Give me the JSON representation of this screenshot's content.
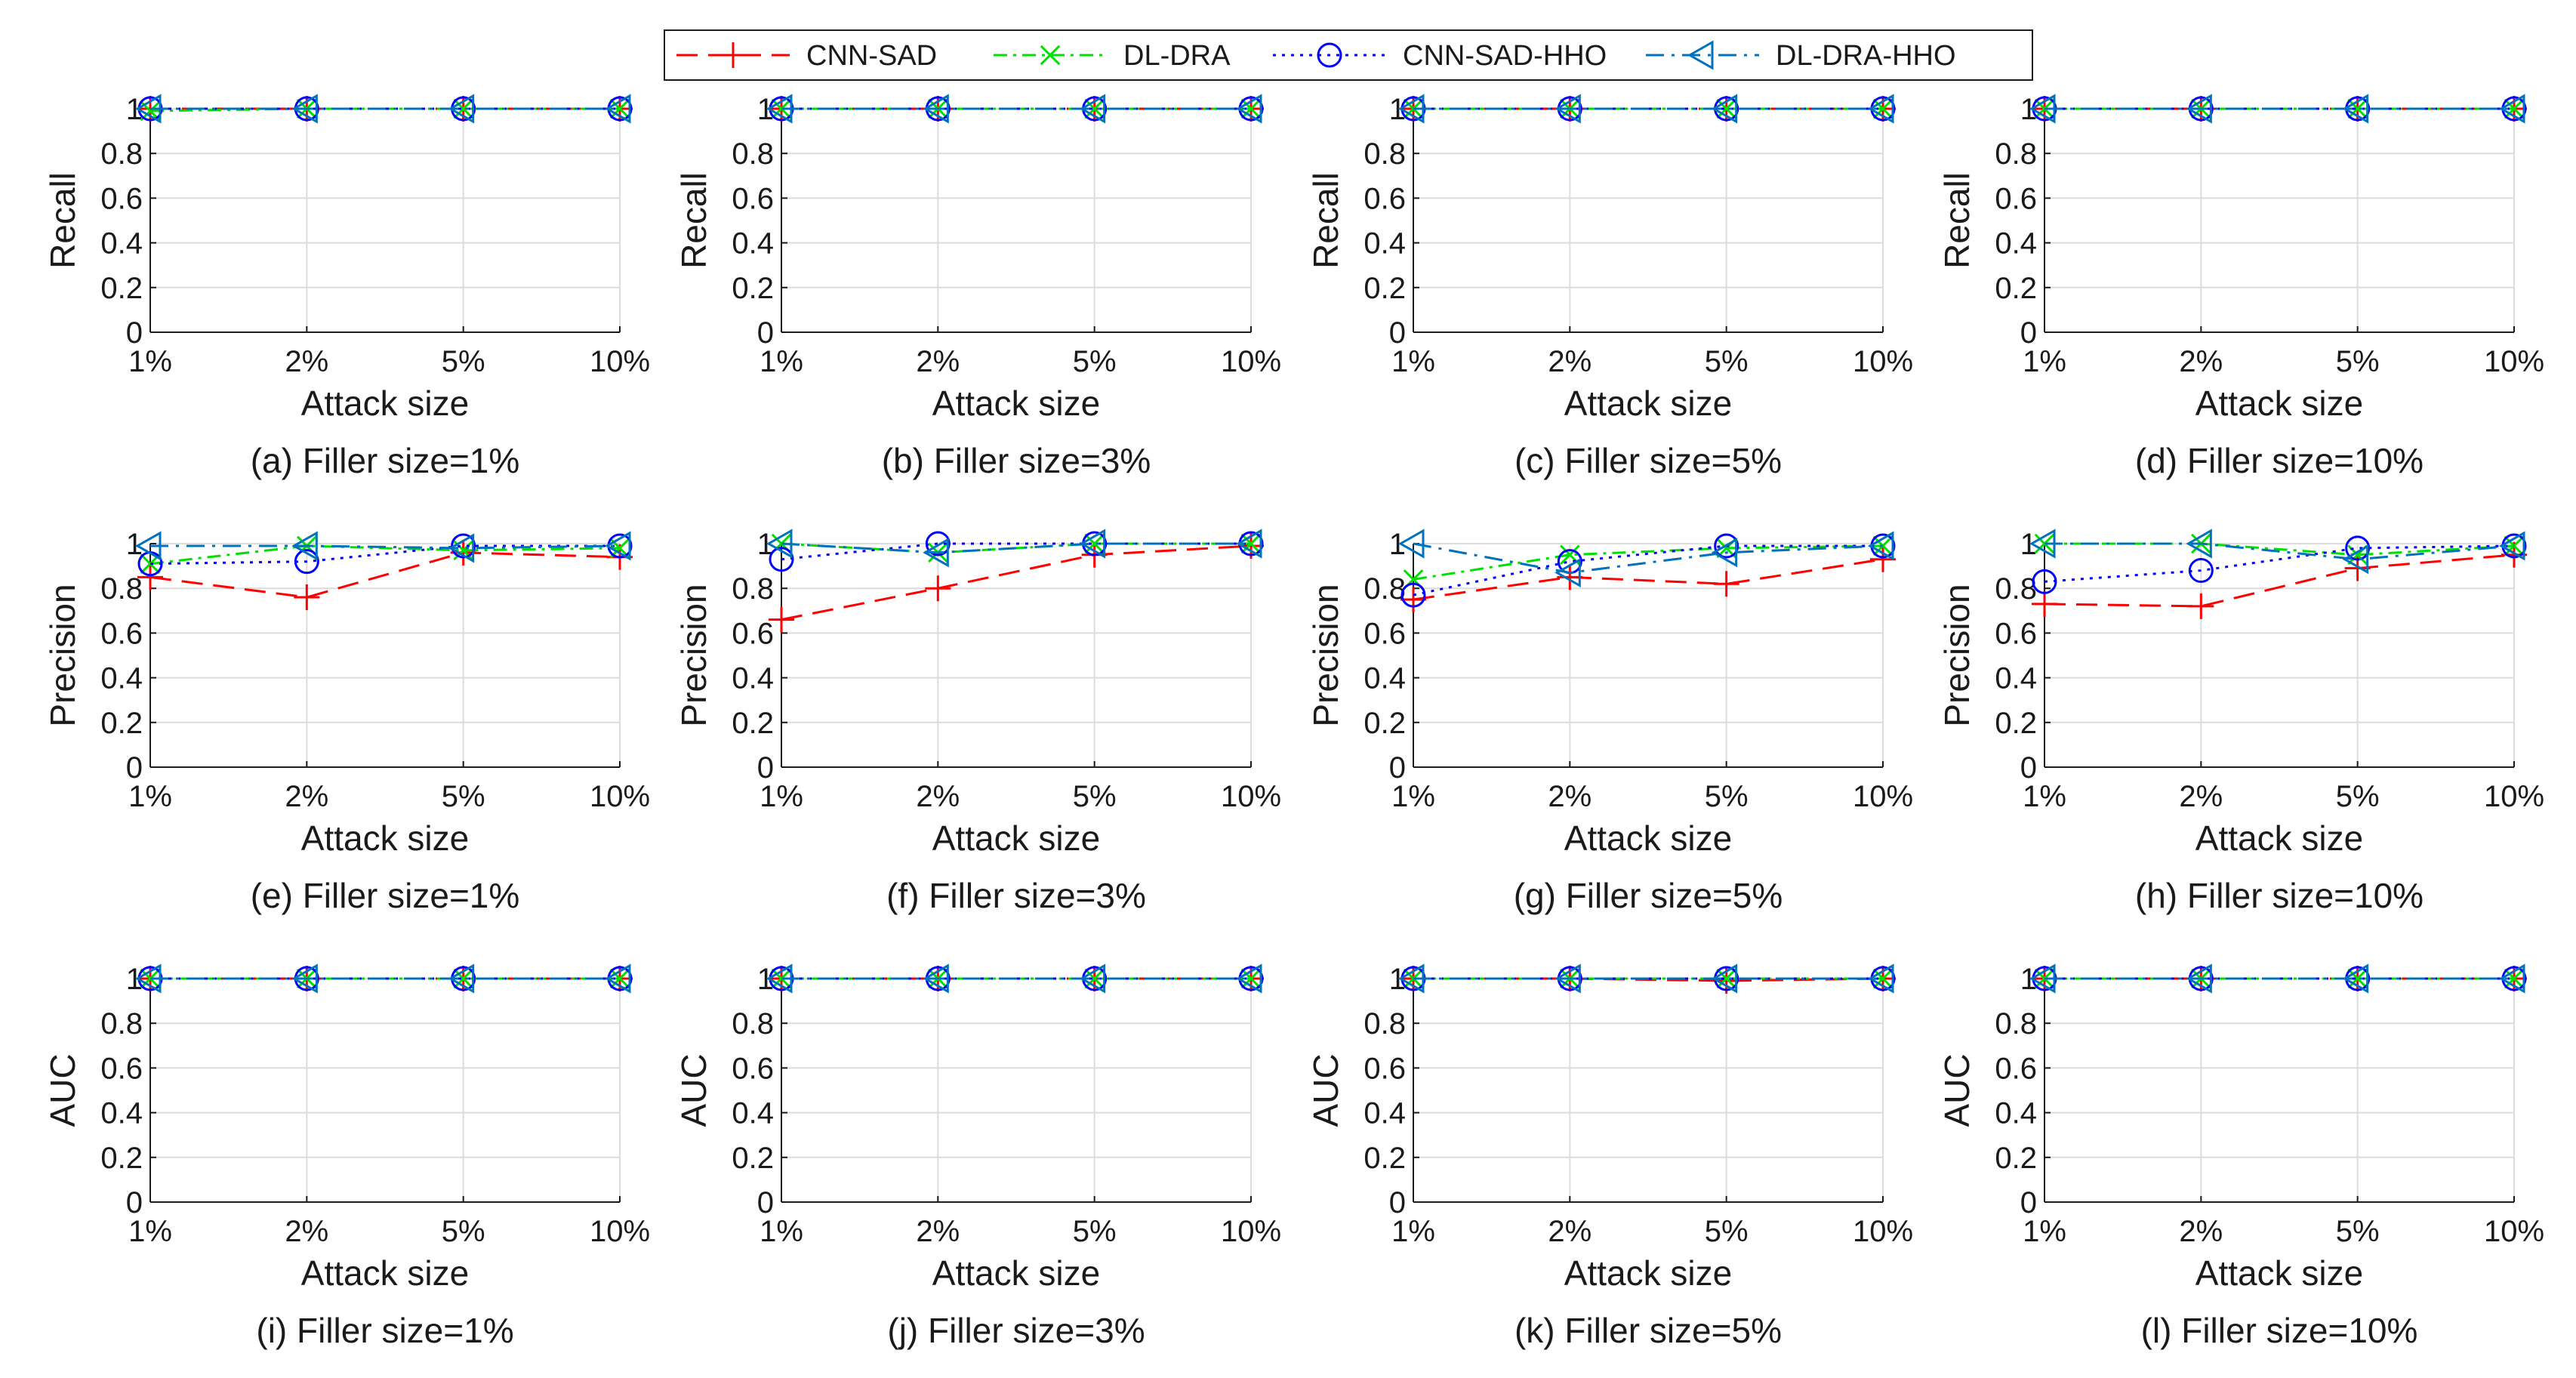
{
  "legend": [
    {
      "name": "CNN-SAD",
      "color": "#ff0000",
      "dash": "28,14",
      "marker": "plus"
    },
    {
      "name": "DL-DRA",
      "color": "#00e000",
      "dash": "18,8,4,8",
      "marker": "cross"
    },
    {
      "name": "CNN-SAD-HHO",
      "color": "#0000ff",
      "dash": "4,8",
      "marker": "circle"
    },
    {
      "name": "DL-DRA-HHO",
      "color": "#0072bd",
      "dash": "24,10,4,10",
      "marker": "triangle-left"
    }
  ],
  "chart_data": [
    {
      "type": "line",
      "panel": "a",
      "caption": "(a) Filler size=1%",
      "ylabel": "Recall",
      "xlabel": "Attack size",
      "categories": [
        "1%",
        "2%",
        "5%",
        "10%"
      ],
      "ylim": [
        0,
        1
      ],
      "yticks": [
        "0",
        "0.2",
        "0.4",
        "0.6",
        "0.8",
        "1"
      ],
      "series": [
        {
          "name": "CNN-SAD",
          "values": [
            1,
            1,
            1,
            1
          ]
        },
        {
          "name": "DL-DRA",
          "values": [
            0.99,
            1,
            1,
            1
          ]
        },
        {
          "name": "CNN-SAD-HHO",
          "values": [
            1,
            1,
            1,
            1
          ]
        },
        {
          "name": "DL-DRA-HHO",
          "values": [
            1,
            1,
            1,
            1
          ]
        }
      ]
    },
    {
      "type": "line",
      "panel": "b",
      "caption": "(b) Filler size=3%",
      "ylabel": "Recall",
      "xlabel": "Attack size",
      "categories": [
        "1%",
        "2%",
        "5%",
        "10%"
      ],
      "ylim": [
        0,
        1
      ],
      "yticks": [
        "0",
        "0.2",
        "0.4",
        "0.6",
        "0.8",
        "1"
      ],
      "series": [
        {
          "name": "CNN-SAD",
          "values": [
            1,
            1,
            1,
            1
          ]
        },
        {
          "name": "DL-DRA",
          "values": [
            1,
            1,
            1,
            1
          ]
        },
        {
          "name": "CNN-SAD-HHO",
          "values": [
            1,
            1,
            1,
            1
          ]
        },
        {
          "name": "DL-DRA-HHO",
          "values": [
            1,
            1,
            1,
            1
          ]
        }
      ]
    },
    {
      "type": "line",
      "panel": "c",
      "caption": "(c) Filler size=5%",
      "ylabel": "Recall",
      "xlabel": "Attack size",
      "categories": [
        "1%",
        "2%",
        "5%",
        "10%"
      ],
      "ylim": [
        0,
        1
      ],
      "yticks": [
        "0",
        "0.2",
        "0.4",
        "0.6",
        "0.8",
        "1"
      ],
      "series": [
        {
          "name": "CNN-SAD",
          "values": [
            1,
            1,
            1,
            1
          ]
        },
        {
          "name": "DL-DRA",
          "values": [
            1,
            1,
            1,
            1
          ]
        },
        {
          "name": "CNN-SAD-HHO",
          "values": [
            1,
            1,
            1,
            1
          ]
        },
        {
          "name": "DL-DRA-HHO",
          "values": [
            1,
            1,
            1,
            1
          ]
        }
      ]
    },
    {
      "type": "line",
      "panel": "d",
      "caption": "(d) Filler size=10%",
      "ylabel": "Recall",
      "xlabel": "Attack size",
      "categories": [
        "1%",
        "2%",
        "5%",
        "10%"
      ],
      "ylim": [
        0,
        1
      ],
      "yticks": [
        "0",
        "0.2",
        "0.4",
        "0.6",
        "0.8",
        "1"
      ],
      "series": [
        {
          "name": "CNN-SAD",
          "values": [
            1,
            1,
            1,
            1
          ]
        },
        {
          "name": "DL-DRA",
          "values": [
            1,
            1,
            1,
            1
          ]
        },
        {
          "name": "CNN-SAD-HHO",
          "values": [
            1,
            1,
            1,
            1
          ]
        },
        {
          "name": "DL-DRA-HHO",
          "values": [
            1,
            1,
            1,
            1
          ]
        }
      ]
    },
    {
      "type": "line",
      "panel": "e",
      "caption": "(e) Filler size=1%",
      "ylabel": "Precision",
      "xlabel": "Attack size",
      "categories": [
        "1%",
        "2%",
        "5%",
        "10%"
      ],
      "ylim": [
        0,
        1
      ],
      "yticks": [
        "0",
        "0.2",
        "0.4",
        "0.6",
        "0.8",
        "1"
      ],
      "series": [
        {
          "name": "CNN-SAD",
          "values": [
            0.85,
            0.76,
            0.96,
            0.94
          ]
        },
        {
          "name": "DL-DRA",
          "values": [
            0.91,
            0.99,
            0.97,
            0.98
          ]
        },
        {
          "name": "CNN-SAD-HHO",
          "values": [
            0.91,
            0.92,
            0.99,
            0.99
          ]
        },
        {
          "name": "DL-DRA-HHO",
          "values": [
            0.99,
            0.99,
            0.98,
            0.99
          ]
        }
      ]
    },
    {
      "type": "line",
      "panel": "f",
      "caption": "(f) Filler size=3%",
      "ylabel": "Precision",
      "xlabel": "Attack size",
      "categories": [
        "1%",
        "2%",
        "5%",
        "10%"
      ],
      "ylim": [
        0,
        1
      ],
      "yticks": [
        "0",
        "0.2",
        "0.4",
        "0.6",
        "0.8",
        "1"
      ],
      "series": [
        {
          "name": "CNN-SAD",
          "values": [
            0.66,
            0.8,
            0.95,
            0.99
          ]
        },
        {
          "name": "DL-DRA",
          "values": [
            1,
            0.96,
            1,
            1
          ]
        },
        {
          "name": "CNN-SAD-HHO",
          "values": [
            0.93,
            1,
            1,
            1
          ]
        },
        {
          "name": "DL-DRA-HHO",
          "values": [
            1,
            0.96,
            1,
            1
          ]
        }
      ]
    },
    {
      "type": "line",
      "panel": "g",
      "caption": "(g) Filler size=5%",
      "ylabel": "Precision",
      "xlabel": "Attack size",
      "categories": [
        "1%",
        "2%",
        "5%",
        "10%"
      ],
      "ylim": [
        0,
        1
      ],
      "yticks": [
        "0",
        "0.2",
        "0.4",
        "0.6",
        "0.8",
        "1"
      ],
      "series": [
        {
          "name": "CNN-SAD",
          "values": [
            0.75,
            0.85,
            0.82,
            0.93
          ]
        },
        {
          "name": "DL-DRA",
          "values": [
            0.84,
            0.95,
            0.98,
            0.99
          ]
        },
        {
          "name": "CNN-SAD-HHO",
          "values": [
            0.77,
            0.92,
            0.99,
            0.99
          ]
        },
        {
          "name": "DL-DRA-HHO",
          "values": [
            1,
            0.87,
            0.96,
            0.99
          ]
        }
      ]
    },
    {
      "type": "line",
      "panel": "h",
      "caption": "(h) Filler size=10%",
      "ylabel": "Precision",
      "xlabel": "Attack size",
      "categories": [
        "1%",
        "2%",
        "5%",
        "10%"
      ],
      "ylim": [
        0,
        1
      ],
      "yticks": [
        "0",
        "0.2",
        "0.4",
        "0.6",
        "0.8",
        "1"
      ],
      "series": [
        {
          "name": "CNN-SAD",
          "values": [
            0.73,
            0.72,
            0.89,
            0.95
          ]
        },
        {
          "name": "DL-DRA",
          "values": [
            1,
            1,
            0.95,
            0.99
          ]
        },
        {
          "name": "CNN-SAD-HHO",
          "values": [
            0.83,
            0.88,
            0.98,
            0.99
          ]
        },
        {
          "name": "DL-DRA-HHO",
          "values": [
            1,
            1,
            0.93,
            0.99
          ]
        }
      ]
    },
    {
      "type": "line",
      "panel": "i",
      "caption": "(i) Filler size=1%",
      "ylabel": "AUC",
      "xlabel": "Attack size",
      "categories": [
        "1%",
        "2%",
        "5%",
        "10%"
      ],
      "ylim": [
        0,
        1
      ],
      "yticks": [
        "0",
        "0.2",
        "0.4",
        "0.6",
        "0.8",
        "1"
      ],
      "series": [
        {
          "name": "CNN-SAD",
          "values": [
            1,
            1,
            1,
            1
          ]
        },
        {
          "name": "DL-DRA",
          "values": [
            1,
            1,
            1,
            1
          ]
        },
        {
          "name": "CNN-SAD-HHO",
          "values": [
            1,
            1,
            1,
            1
          ]
        },
        {
          "name": "DL-DRA-HHO",
          "values": [
            1,
            1,
            1,
            1
          ]
        }
      ]
    },
    {
      "type": "line",
      "panel": "j",
      "caption": "(j) Filler size=3%",
      "ylabel": "AUC",
      "xlabel": "Attack size",
      "categories": [
        "1%",
        "2%",
        "5%",
        "10%"
      ],
      "ylim": [
        0,
        1
      ],
      "yticks": [
        "0",
        "0.2",
        "0.4",
        "0.6",
        "0.8",
        "1"
      ],
      "series": [
        {
          "name": "CNN-SAD",
          "values": [
            1,
            1,
            1,
            1
          ]
        },
        {
          "name": "DL-DRA",
          "values": [
            1,
            1,
            1,
            1
          ]
        },
        {
          "name": "CNN-SAD-HHO",
          "values": [
            1,
            1,
            1,
            1
          ]
        },
        {
          "name": "DL-DRA-HHO",
          "values": [
            1,
            1,
            1,
            1
          ]
        }
      ]
    },
    {
      "type": "line",
      "panel": "k",
      "caption": "(k) Filler size=5%",
      "ylabel": "AUC",
      "xlabel": "Attack size",
      "categories": [
        "1%",
        "2%",
        "5%",
        "10%"
      ],
      "ylim": [
        0,
        1
      ],
      "yticks": [
        "0",
        "0.2",
        "0.4",
        "0.6",
        "0.8",
        "1"
      ],
      "series": [
        {
          "name": "CNN-SAD",
          "values": [
            1,
            1,
            0.99,
            1
          ]
        },
        {
          "name": "DL-DRA",
          "values": [
            1,
            1,
            1,
            1
          ]
        },
        {
          "name": "CNN-SAD-HHO",
          "values": [
            1,
            1,
            1,
            1
          ]
        },
        {
          "name": "DL-DRA-HHO",
          "values": [
            1,
            1,
            1,
            1
          ]
        }
      ]
    },
    {
      "type": "line",
      "panel": "l",
      "caption": "(l) Filler size=10%",
      "ylabel": "AUC",
      "xlabel": "Attack size",
      "categories": [
        "1%",
        "2%",
        "5%",
        "10%"
      ],
      "ylim": [
        0,
        1
      ],
      "yticks": [
        "0",
        "0.2",
        "0.4",
        "0.6",
        "0.8",
        "1"
      ],
      "series": [
        {
          "name": "CNN-SAD",
          "values": [
            1,
            1,
            1,
            1
          ]
        },
        {
          "name": "DL-DRA",
          "values": [
            1,
            1,
            1,
            1
          ]
        },
        {
          "name": "CNN-SAD-HHO",
          "values": [
            1,
            1,
            1,
            1
          ]
        },
        {
          "name": "DL-DRA-HHO",
          "values": [
            1,
            1,
            1,
            1
          ]
        }
      ]
    }
  ]
}
